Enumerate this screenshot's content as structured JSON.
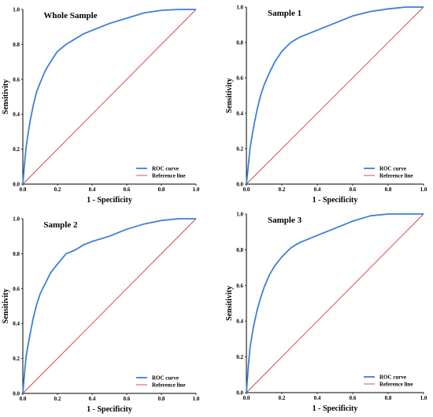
{
  "chart_data": [
    {
      "type": "line",
      "title": "Whole Sample",
      "xlabel": "1 - Specificity",
      "ylabel": "Sensitivity",
      "xlim": [
        0,
        1
      ],
      "ylim": [
        0,
        1
      ],
      "xticks": [
        "0.0",
        "0.2",
        "0.4",
        "0.6",
        "0.8",
        "1.0"
      ],
      "yticks": [
        "0.0",
        "0.2",
        "0.4",
        "0.6",
        "0.8",
        "1.0"
      ],
      "legend_position": "bottom-right",
      "series": [
        {
          "name": "ROC curve",
          "color": "#3b7fdb",
          "x": [
            0,
            0.01,
            0.02,
            0.04,
            0.06,
            0.08,
            0.1,
            0.13,
            0.16,
            0.2,
            0.25,
            0.3,
            0.35,
            0.4,
            0.5,
            0.6,
            0.7,
            0.8,
            0.9,
            1.0
          ],
          "y": [
            0,
            0.12,
            0.22,
            0.35,
            0.45,
            0.53,
            0.58,
            0.65,
            0.7,
            0.76,
            0.8,
            0.83,
            0.86,
            0.88,
            0.92,
            0.95,
            0.98,
            0.995,
            1.0,
            1.0
          ]
        },
        {
          "name": "Reference line",
          "color": "#d9394a",
          "x": [
            0,
            1
          ],
          "y": [
            0,
            1
          ]
        }
      ]
    },
    {
      "type": "line",
      "title": "Sample 1",
      "xlabel": "1 - Specificity",
      "ylabel": "Sensitivity",
      "xlim": [
        0,
        1
      ],
      "ylim": [
        0,
        1
      ],
      "xticks": [
        "0.0",
        "0.2",
        "0.4",
        "0.6",
        "0.8",
        "1.0"
      ],
      "yticks": [
        "0.0",
        "0.2",
        "0.4",
        "0.6",
        "0.8",
        "1.0"
      ],
      "legend_position": "bottom-right",
      "series": [
        {
          "name": "ROC curve",
          "color": "#3b7fdb",
          "x": [
            0,
            0.01,
            0.02,
            0.04,
            0.06,
            0.08,
            0.1,
            0.13,
            0.16,
            0.2,
            0.25,
            0.3,
            0.35,
            0.4,
            0.5,
            0.6,
            0.7,
            0.8,
            0.9,
            1.0
          ],
          "y": [
            0,
            0.1,
            0.2,
            0.32,
            0.42,
            0.5,
            0.56,
            0.63,
            0.69,
            0.75,
            0.8,
            0.83,
            0.85,
            0.87,
            0.91,
            0.95,
            0.975,
            0.99,
            1.0,
            1.0
          ]
        },
        {
          "name": "Reference line",
          "color": "#d9394a",
          "x": [
            0,
            1
          ],
          "y": [
            0,
            1
          ]
        }
      ]
    },
    {
      "type": "line",
      "title": "Sample 2",
      "xlabel": "1 - Specificity",
      "ylabel": "Sensitivity",
      "xlim": [
        0,
        1
      ],
      "ylim": [
        0,
        1
      ],
      "xticks": [
        "0.0",
        "0.2",
        "0.4",
        "0.6",
        "0.8",
        "1.0"
      ],
      "yticks": [
        "0.0",
        "0.2",
        "0.4",
        "0.6",
        "0.8",
        "1.0"
      ],
      "legend_position": "bottom-right",
      "series": [
        {
          "name": "ROC curve",
          "color": "#3b7fdb",
          "x": [
            0,
            0.01,
            0.02,
            0.04,
            0.06,
            0.08,
            0.1,
            0.13,
            0.16,
            0.2,
            0.25,
            0.3,
            0.35,
            0.4,
            0.5,
            0.6,
            0.7,
            0.8,
            0.9,
            1.0
          ],
          "y": [
            0,
            0.12,
            0.22,
            0.33,
            0.43,
            0.51,
            0.57,
            0.63,
            0.69,
            0.74,
            0.8,
            0.82,
            0.85,
            0.87,
            0.9,
            0.94,
            0.97,
            0.99,
            1.0,
            1.0
          ]
        },
        {
          "name": "Reference line",
          "color": "#d9394a",
          "x": [
            0,
            1
          ],
          "y": [
            0,
            1
          ]
        }
      ]
    },
    {
      "type": "line",
      "title": "Sample 3",
      "xlabel": "1 - Specificity",
      "ylabel": "Sensitivity",
      "xlim": [
        0,
        1
      ],
      "ylim": [
        0,
        1
      ],
      "xticks": [
        "0.0",
        "0.2",
        "0.4",
        "0.6",
        "0.8",
        "1.0"
      ],
      "yticks": [
        "0.0",
        "0.2",
        "0.4",
        "0.6",
        "0.8",
        "1.0"
      ],
      "legend_position": "bottom-right",
      "series": [
        {
          "name": "ROC curve",
          "color": "#3b7fdb",
          "x": [
            0,
            0.01,
            0.02,
            0.04,
            0.06,
            0.08,
            0.1,
            0.13,
            0.16,
            0.2,
            0.25,
            0.3,
            0.35,
            0.4,
            0.5,
            0.6,
            0.7,
            0.8,
            0.9,
            1.0
          ],
          "y": [
            0,
            0.14,
            0.25,
            0.37,
            0.46,
            0.53,
            0.59,
            0.66,
            0.71,
            0.76,
            0.81,
            0.84,
            0.86,
            0.88,
            0.92,
            0.96,
            0.99,
            1.0,
            1.0,
            1.0
          ]
        },
        {
          "name": "Reference line",
          "color": "#d9394a",
          "x": [
            0,
            1
          ],
          "y": [
            0,
            1
          ]
        }
      ]
    }
  ]
}
